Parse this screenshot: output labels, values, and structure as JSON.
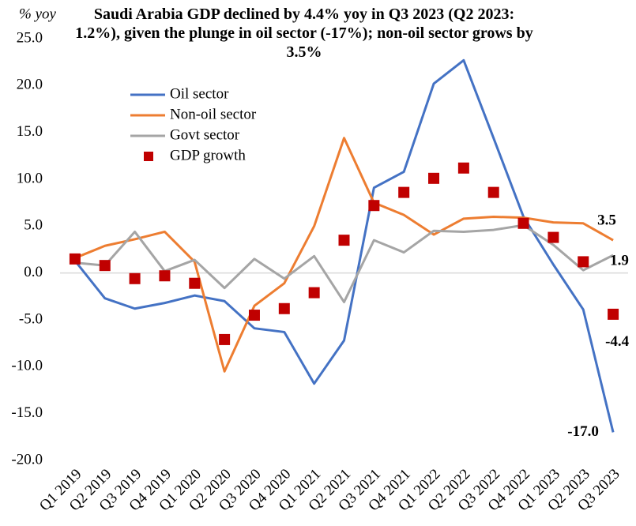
{
  "chart_data": {
    "type": "line",
    "title": "Saudi Arabia GDP declined by 4.4% yoy in Q3 2023 (Q2 2023: 1.2%), given the plunge in oil sector (-17%); non-oil sector grows by 3.5%",
    "y_axis_label": "% yoy",
    "categories": [
      "Q1 2019",
      "Q2 2019",
      "Q3 2019",
      "Q4 2019",
      "Q1 2020",
      "Q2 2020",
      "Q3 2020",
      "Q4 2020",
      "Q1 2021",
      "Q2 2021",
      "Q3 2021",
      "Q4 2021",
      "Q1 2022",
      "Q2 2022",
      "Q3 2022",
      "Q4 2022",
      "Q1 2023",
      "Q2 2023",
      "Q3 2023"
    ],
    "series": [
      {
        "name": "Oil sector",
        "color": "#4472c4",
        "kind": "line",
        "values": [
          1.3,
          -2.7,
          -3.8,
          -3.2,
          -2.4,
          -3.0,
          -5.9,
          -6.3,
          -11.8,
          -7.2,
          9.1,
          10.8,
          20.2,
          22.7,
          14.4,
          6.0,
          0.9,
          -3.9,
          -17.0
        ],
        "value_labels": [
          null,
          null,
          null,
          null,
          null,
          null,
          null,
          null,
          null,
          null,
          null,
          null,
          null,
          null,
          null,
          null,
          null,
          null,
          "-17.0"
        ]
      },
      {
        "name": "Non-oil sector",
        "color": "#ed7d31",
        "kind": "line",
        "values": [
          1.6,
          2.9,
          3.6,
          4.4,
          1.2,
          -10.5,
          -3.5,
          -1.1,
          5.0,
          14.4,
          7.5,
          6.2,
          4.1,
          5.8,
          6.0,
          5.9,
          5.4,
          5.3,
          3.5
        ]
      },
      {
        "name": "Govt sector",
        "color": "#a5a5a5",
        "kind": "line",
        "values": [
          1.1,
          0.8,
          4.4,
          0.2,
          1.4,
          -1.6,
          1.5,
          -0.6,
          1.8,
          -3.1,
          3.5,
          2.2,
          4.5,
          4.4,
          4.6,
          5.1,
          3.0,
          0.3,
          1.9
        ]
      },
      {
        "name": "GDP growth",
        "color": "#c00000",
        "kind": "marker",
        "values": [
          1.5,
          0.8,
          -0.6,
          -0.3,
          -1.1,
          -7.1,
          -4.5,
          -3.8,
          -2.1,
          3.5,
          7.2,
          8.6,
          10.1,
          11.2,
          8.6,
          5.3,
          3.8,
          1.2,
          -4.4
        ]
      }
    ],
    "ylim": [
      -20,
      25
    ],
    "yticks": [
      {
        "value": -20,
        "label": "-20.0"
      },
      {
        "value": -15,
        "label": "-15.0"
      },
      {
        "value": -10,
        "label": "-10.0"
      },
      {
        "value": -5,
        "label": "-5.0"
      },
      {
        "value": 0,
        "label": "0.0"
      },
      {
        "value": 5,
        "label": "5.0"
      },
      {
        "value": 10,
        "label": "10.0"
      },
      {
        "value": 15,
        "label": "15.0"
      },
      {
        "value": 20,
        "label": "20.0"
      },
      {
        "value": 25,
        "label": "25.0"
      }
    ],
    "grid": false,
    "legend": "upper-left"
  }
}
